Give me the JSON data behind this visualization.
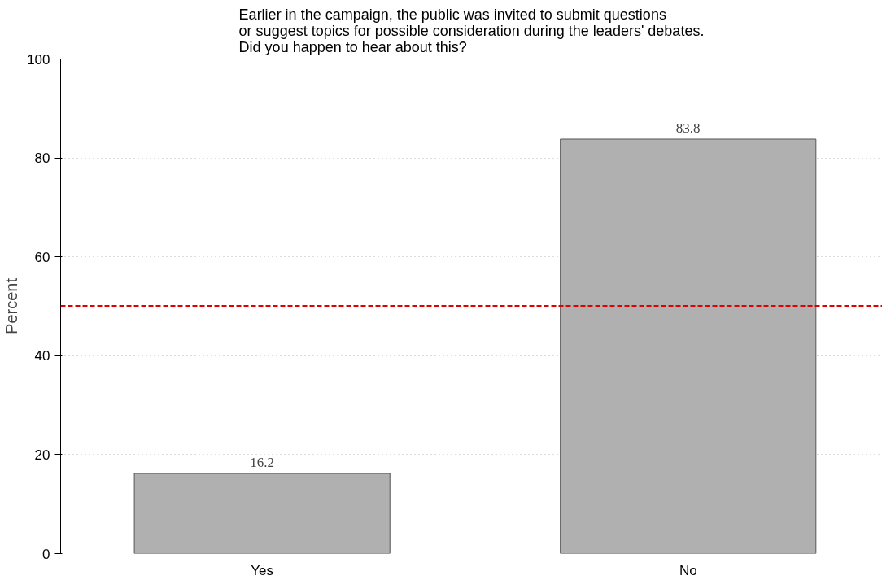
{
  "chart_data": {
    "type": "bar",
    "title": "Earlier in the campaign, the public was invited to submit questions\nor suggest topics for possible consideration during the leaders' debates.\nDid you happen to hear about this?",
    "ylabel": "Percent",
    "categories": [
      "Yes",
      "No"
    ],
    "values": [
      16.2,
      83.8
    ],
    "color": "#b0b0b0",
    "data_labels": true,
    "ylim": [
      0,
      100
    ],
    "yticks": [
      0,
      20,
      40,
      60,
      80,
      100
    ],
    "grid": "y",
    "ref_lines": [
      {
        "axis": "y",
        "value": 50,
        "color": "#e00000",
        "line_style": "dashed"
      }
    ]
  }
}
